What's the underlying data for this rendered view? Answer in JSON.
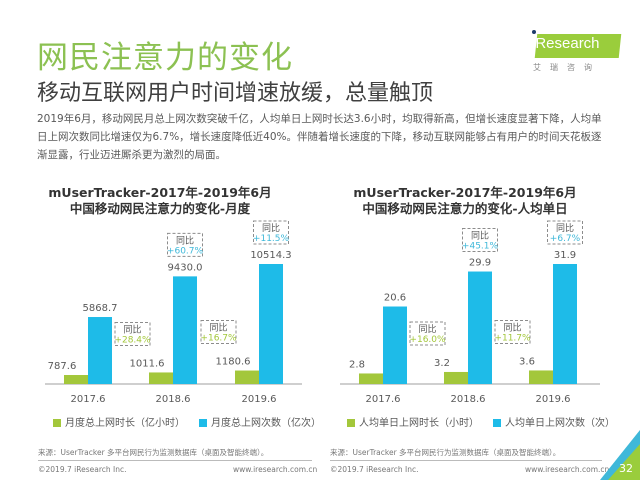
{
  "header": {
    "title": "网民注意力的变化",
    "subtitle": "移动互联网用户时间增速放缓，总量触顶",
    "body": "2019年6月，移动网民月总上网次数突破千亿，人均单日上网时长达3.6小时，均取得新高，但增长速度显著下降，人均单日上网次数同比增速仅为6.7%，增长速度降低近40%。伴随着增长速度的下降，移动互联网能够占有用户的时间天花板逐渐显露，行业迈进厮杀更为激烈的局面。"
  },
  "logo": {
    "text": "iResearch",
    "cn": "艾瑞咨询"
  },
  "colors": {
    "green": "#a3c73b",
    "blue": "#1ebbe8",
    "title_green": "#8cc152",
    "growth_green": "#a3c73b",
    "growth_blue": "#3fb8d9"
  },
  "chart_data": [
    {
      "type": "bar",
      "title": "mUserTracker-2017年-2019年6月\n中国移动网民注意力的变化-月度",
      "title_line1": "mUserTracker-2017年-2019年6月",
      "title_line2": "中国移动网民注意力的变化-月度",
      "categories": [
        "2017.6",
        "2018.6",
        "2019.6"
      ],
      "series": [
        {
          "name": "月度总上网时长（亿小时）",
          "values": [
            787.6,
            1011.6,
            1180.6
          ],
          "labels": [
            "787.6",
            "1011.6",
            "1180.6"
          ],
          "growth": [
            null,
            "+28.4%",
            "+16.7%"
          ]
        },
        {
          "name": "月度总上网次数（亿次）",
          "values": [
            5868.7,
            9430.0,
            10514.3
          ],
          "labels": [
            "5868.7",
            "9430.0",
            "10514.3"
          ],
          "growth": [
            null,
            "+60.7%",
            "+11.5%"
          ]
        }
      ],
      "growth_label": "同比",
      "source": "来源：UserTracker 多平台网民行为监测数据库（桌面及智能终端）。",
      "legend": "bottom"
    },
    {
      "type": "bar",
      "title": "mUserTracker-2017年-2019年6月\n中国移动网民注意力的变化-人均单日",
      "title_line1": "mUserTracker-2017年-2019年6月",
      "title_line2": "中国移动网民注意力的变化-人均单日",
      "categories": [
        "2017.6",
        "2018.6",
        "2019.6"
      ],
      "series": [
        {
          "name": "人均单日上网时长（小时）",
          "values": [
            2.8,
            3.2,
            3.6
          ],
          "labels": [
            "2.8",
            "3.2",
            "3.6"
          ],
          "growth": [
            null,
            "+16.0%",
            "+11.7%"
          ]
        },
        {
          "name": "人均单日上网次数（次）",
          "values": [
            20.6,
            29.9,
            31.9
          ],
          "labels": [
            "20.6",
            "29.9",
            "31.9"
          ],
          "growth": [
            null,
            "+45.1%",
            "+6.7%"
          ]
        }
      ],
      "growth_label": "同比",
      "source": "来源：UserTracker 多平台网民行为监测数据库（桌面及智能终端）。",
      "legend": "bottom"
    }
  ],
  "footer": {
    "copyright": "©2019.7 iResearch Inc.",
    "url": "www.iresearch.com.cn",
    "page": "32"
  }
}
